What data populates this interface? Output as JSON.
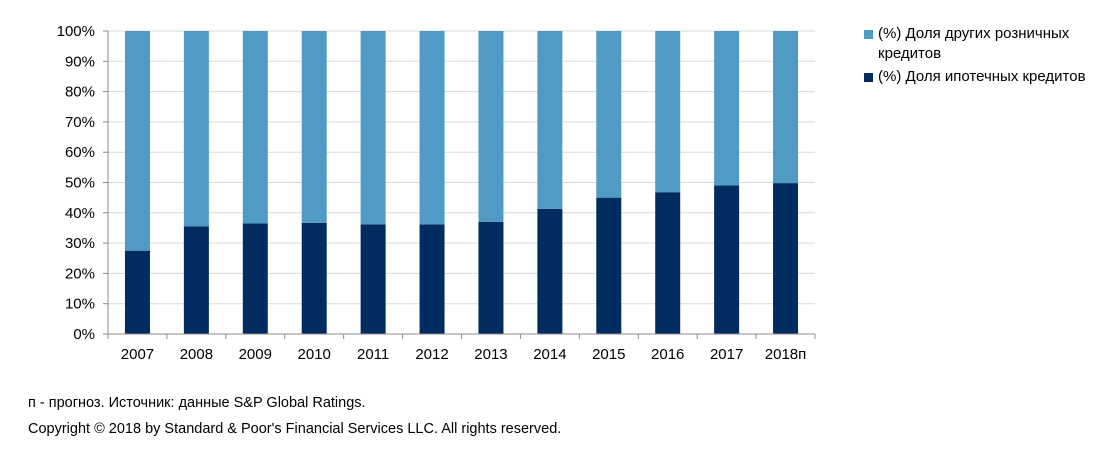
{
  "chart_data": {
    "type": "bar",
    "stacked": true,
    "categories": [
      "2007",
      "2008",
      "2009",
      "2010",
      "2011",
      "2012",
      "2013",
      "2014",
      "2015",
      "2016",
      "2017",
      "2018п"
    ],
    "series": [
      {
        "name": "(%) Доля ипотечных кредитов",
        "color": "#002c5f",
        "values": [
          27.5,
          35.5,
          36.5,
          36.7,
          36.2,
          36.2,
          37.0,
          41.3,
          45.0,
          46.8,
          49.0,
          49.8
        ]
      },
      {
        "name": "(%) Доля других розничных кредитов",
        "color": "#4f9bc3",
        "values": [
          72.5,
          64.5,
          63.5,
          63.3,
          63.8,
          63.8,
          63.0,
          58.7,
          55.0,
          53.2,
          51.0,
          50.2
        ]
      }
    ],
    "yticks": [
      "0%",
      "10%",
      "20%",
      "30%",
      "40%",
      "50%",
      "60%",
      "70%",
      "80%",
      "90%",
      "100%"
    ],
    "ylim": [
      0,
      100
    ],
    "grid": true,
    "legend_position": "right"
  },
  "footnote": "п - прогноз. Источник: данные S&P Global Ratings.",
  "copyright": "Copyright © 2018 by Standard & Poor's Financial Services LLC. All rights reserved."
}
